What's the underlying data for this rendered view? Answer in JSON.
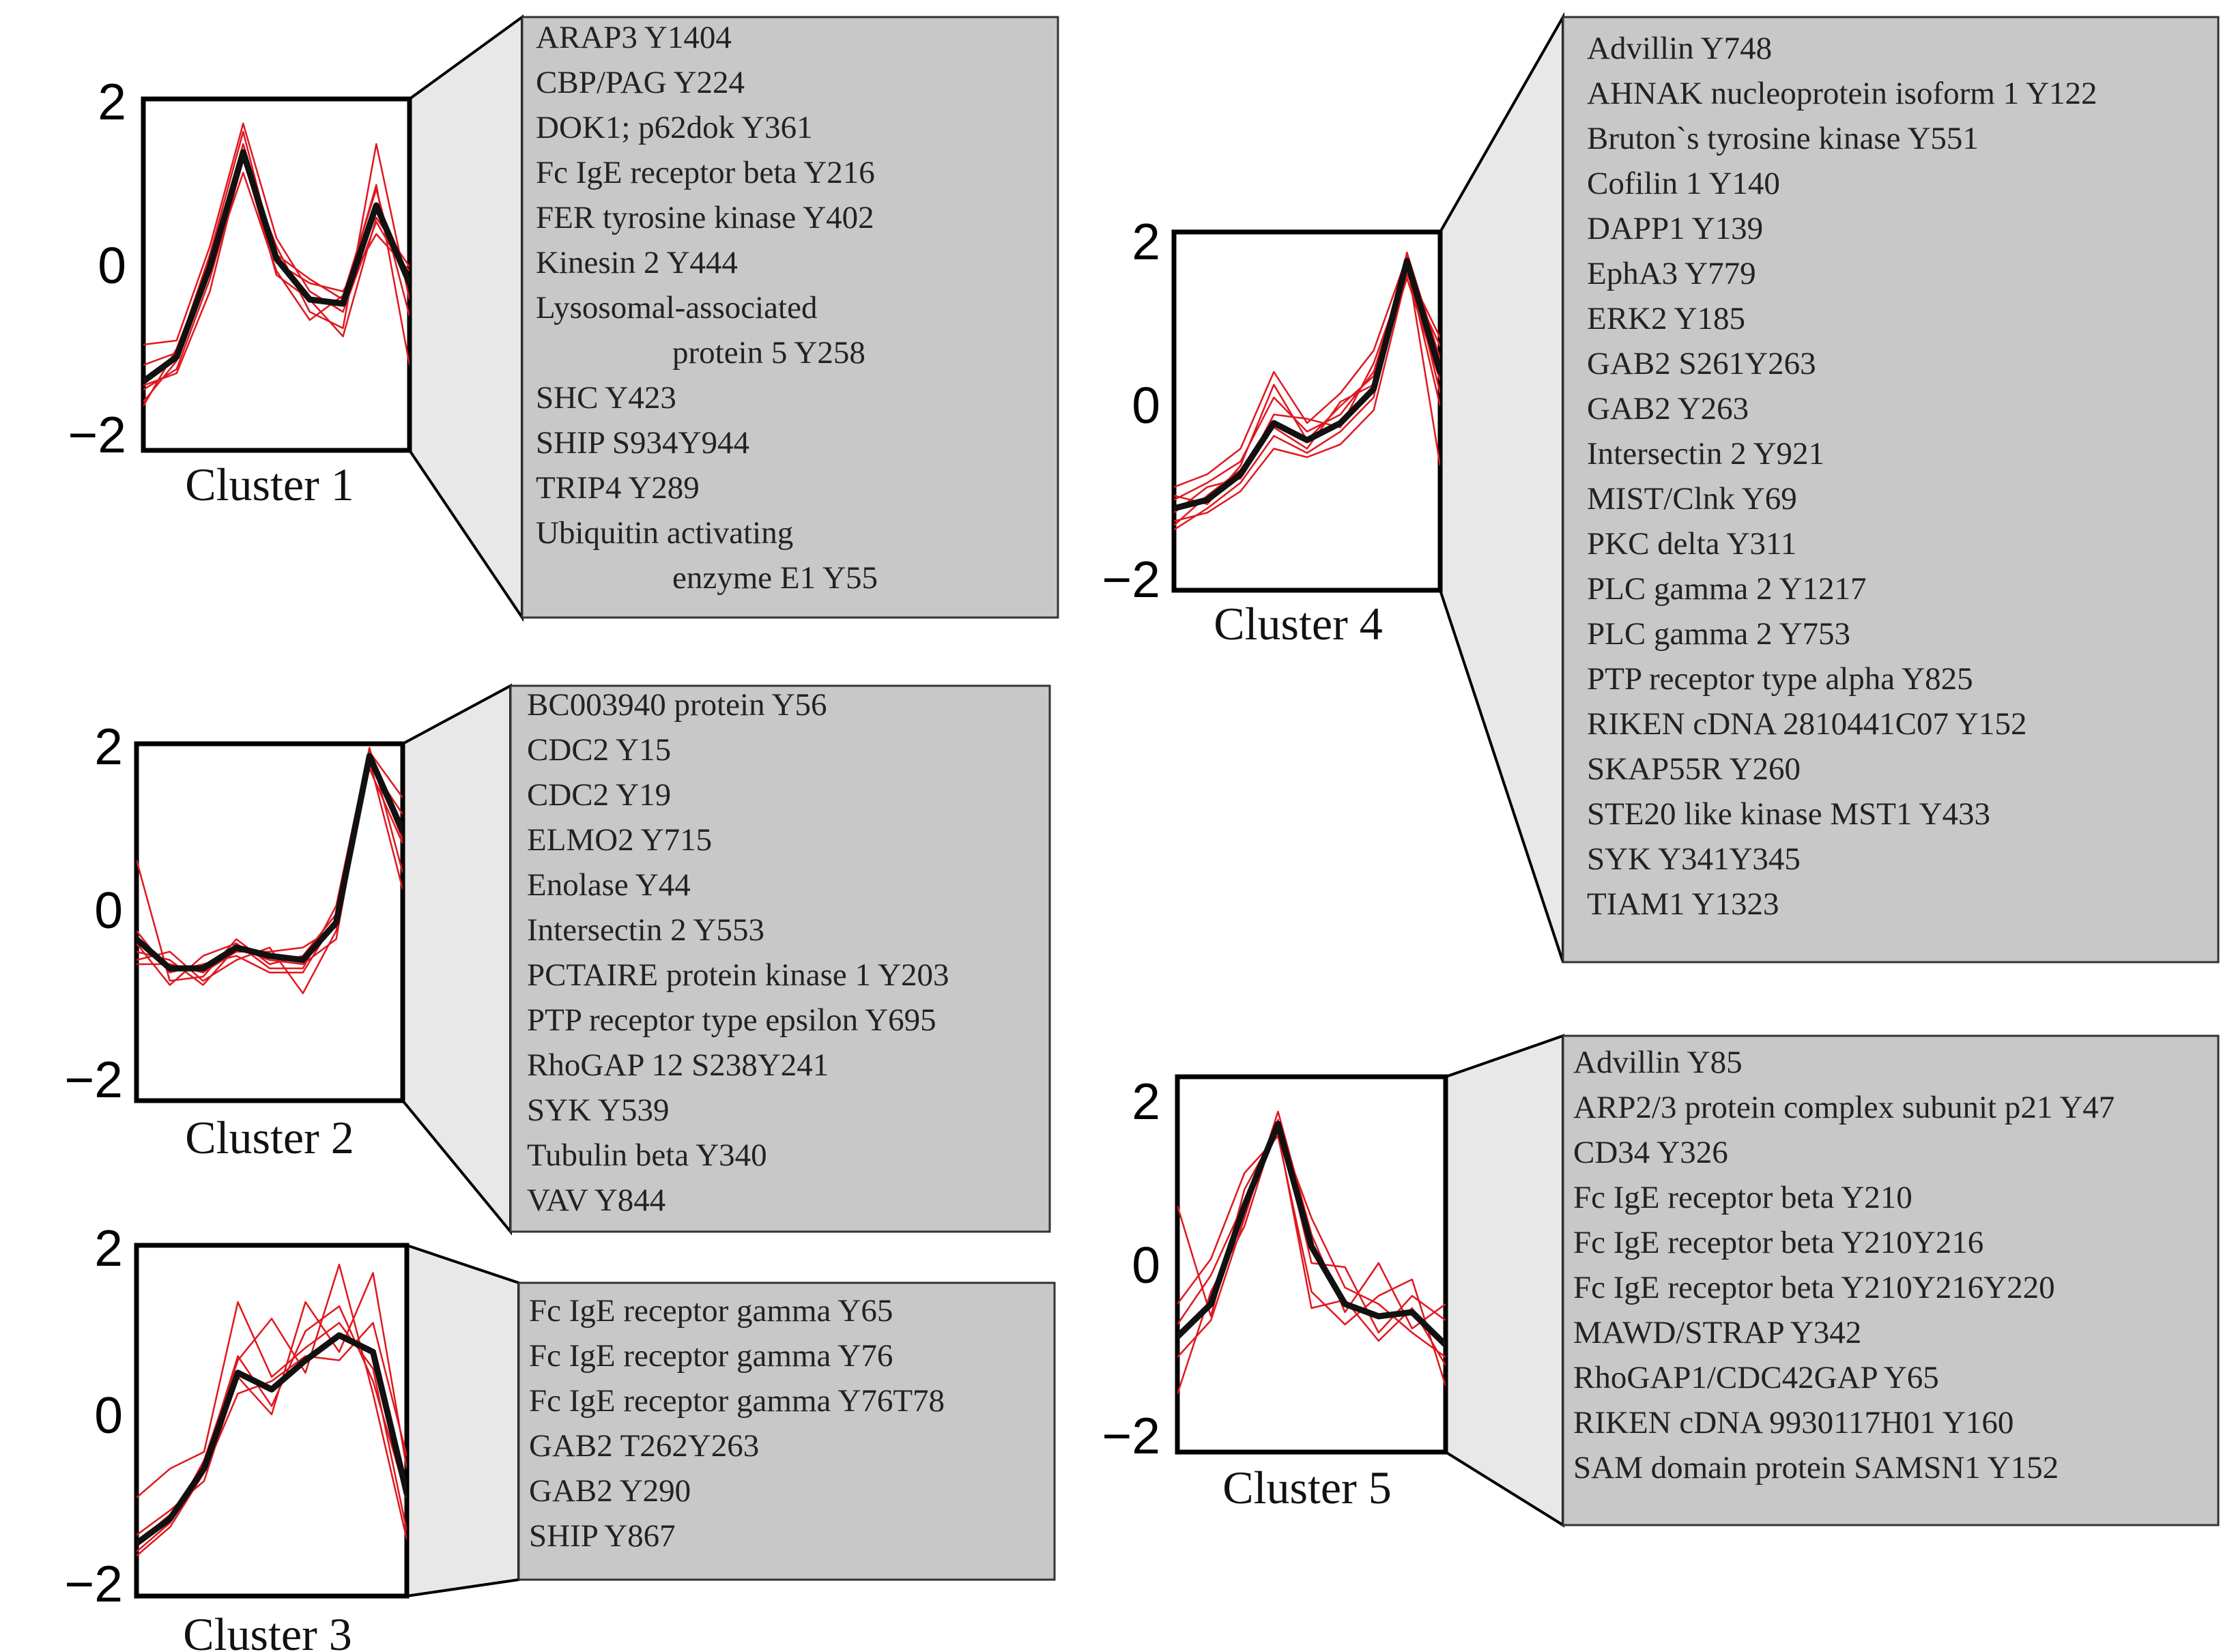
{
  "colors": {
    "member_line": "#e0171f",
    "mean_line": "#111111",
    "callout_box": "#c8c8c8",
    "callout_trapezoid": "#e8e8e8",
    "frame": "#000000"
  },
  "chart_data": [
    {
      "type": "line",
      "title": "Cluster 1",
      "ylim": [
        -2,
        2
      ],
      "yticks": [
        "2",
        "0",
        "−2"
      ],
      "mean": [
        -1.2,
        -0.9,
        0.2,
        1.6,
        0.3,
        -0.2,
        -0.25,
        0.95,
        0.0
      ],
      "members": [
        [
          -1.3,
          -1.05,
          0.05,
          1.5,
          0.45,
          -0.35,
          -0.55,
          1.7,
          -0.2
        ],
        [
          -1.0,
          -0.85,
          0.35,
          1.85,
          0.25,
          0.0,
          -0.1,
          0.6,
          0.15
        ],
        [
          -1.45,
          -0.95,
          0.15,
          1.35,
          0.15,
          -0.45,
          -0.15,
          1.15,
          -0.4
        ],
        [
          -0.75,
          -0.7,
          0.45,
          1.95,
          0.55,
          -0.1,
          -0.35,
          0.75,
          0.05
        ],
        [
          -1.25,
          -1.1,
          -0.1,
          1.55,
          0.1,
          -0.2,
          -0.65,
          0.8,
          0.2
        ],
        [
          -1.5,
          -0.8,
          0.25,
          1.7,
          0.35,
          0.05,
          -0.2,
          1.2,
          -1.0
        ]
      ],
      "items": [
        "ARAP3 Y1404",
        "CBP/PAG Y224",
        "DOK1; p62dok Y361",
        "Fc IgE receptor beta Y216",
        "FER tyrosine kinase Y402",
        "Kinesin 2 Y444",
        "Lysosomal-associated",
        "protein 5 Y258",
        "SHC Y423",
        "SHIP S934Y944",
        "TRIP4 Y289",
        "Ubiquitin activating",
        "enzyme E1 Y55"
      ]
    },
    {
      "type": "line",
      "title": "Cluster 2",
      "ylim": [
        -2,
        2
      ],
      "yticks": [
        "2",
        "0",
        "−2"
      ],
      "mean": [
        -0.2,
        -0.55,
        -0.55,
        -0.3,
        -0.4,
        -0.45,
        0.0,
        2.0,
        1.1
      ],
      "members": [
        [
          0.75,
          -0.7,
          -0.65,
          -0.2,
          -0.5,
          -0.4,
          0.1,
          1.85,
          0.95
        ],
        [
          -0.45,
          -0.35,
          -0.7,
          -0.45,
          -0.3,
          -0.85,
          -0.1,
          2.05,
          1.5
        ],
        [
          -0.25,
          -0.75,
          -0.4,
          -0.25,
          -0.55,
          -0.55,
          0.2,
          2.1,
          0.6
        ],
        [
          -0.5,
          -0.5,
          -0.6,
          -0.35,
          -0.35,
          -0.3,
          -0.05,
          1.9,
          1.3
        ],
        [
          -0.1,
          -0.6,
          -0.5,
          -0.4,
          -0.6,
          -0.6,
          0.05,
          1.95,
          0.4
        ],
        [
          -0.35,
          -0.45,
          -0.75,
          -0.3,
          -0.45,
          -0.5,
          -0.2,
          2.0,
          1.0
        ]
      ],
      "items": [
        "BC003940 protein Y56",
        "CDC2 Y15",
        "CDC2 Y19",
        "ELMO2 Y715",
        "Enolase Y44",
        "Intersectin 2 Y553",
        "PCTAIRE protein kinase 1 Y203",
        "PTP receptor type epsilon Y695",
        "RhoGAP 12 S238Y241",
        "SYK Y539",
        "Tubulin  beta Y340",
        "VAV Y844"
      ]
    },
    {
      "type": "line",
      "title": "Cluster 3",
      "ylim": [
        -2,
        2
      ],
      "yticks": [
        "2",
        "0",
        "−2"
      ],
      "mean": [
        -1.45,
        -1.15,
        -0.55,
        0.6,
        0.4,
        0.75,
        1.05,
        0.85,
        -0.85
      ],
      "members": [
        [
          -1.55,
          -1.2,
          -0.45,
          0.75,
          1.25,
          0.6,
          1.9,
          0.35,
          -1.4
        ],
        [
          -1.35,
          -1.05,
          -0.7,
          0.55,
          0.1,
          1.45,
          0.85,
          1.8,
          -0.55
        ],
        [
          -0.9,
          -0.55,
          -0.35,
          1.45,
          0.55,
          0.9,
          1.2,
          0.65,
          -1.3
        ],
        [
          -1.6,
          -1.25,
          -0.6,
          0.35,
          0.5,
          0.8,
          0.75,
          1.2,
          -0.4
        ],
        [
          -1.45,
          -1.1,
          -0.5,
          0.8,
          0.2,
          1.1,
          1.4,
          0.5,
          -0.9
        ]
      ],
      "items": [
        "Fc IgE receptor gamma Y65",
        "Fc IgE receptor gamma Y76",
        "Fc IgE receptor gamma Y76T78",
        "GAB2 T262Y263",
        "GAB2 Y290",
        "SHIP Y867"
      ]
    },
    {
      "type": "line",
      "title": "Cluster 4",
      "ylim": [
        -2,
        2
      ],
      "yticks": [
        "2",
        "0",
        "−2"
      ],
      "mean": [
        -1.0,
        -0.9,
        -0.6,
        0.0,
        -0.2,
        0.0,
        0.4,
        1.9,
        0.6
      ],
      "members": [
        [
          -0.75,
          -0.6,
          -0.3,
          0.6,
          0.0,
          0.35,
          0.85,
          1.95,
          0.35
        ],
        [
          -1.15,
          -1.05,
          -0.8,
          -0.3,
          -0.4,
          -0.25,
          0.15,
          1.75,
          0.9
        ],
        [
          -0.9,
          -0.7,
          -0.45,
          0.3,
          -0.1,
          0.1,
          0.6,
          1.85,
          0.2
        ],
        [
          -1.25,
          -1.0,
          -0.7,
          -0.15,
          -0.35,
          -0.1,
          0.3,
          2.0,
          0.75
        ],
        [
          -0.85,
          -0.95,
          -0.5,
          0.45,
          -0.2,
          0.2,
          0.55,
          1.9,
          -0.5
        ],
        [
          -1.05,
          -0.75,
          -0.65,
          0.1,
          0.05,
          -0.05,
          0.7,
          1.8,
          1.0
        ],
        [
          -1.2,
          -0.85,
          -0.55,
          -0.05,
          -0.3,
          0.25,
          0.45,
          1.7,
          0.5
        ]
      ],
      "items": [
        "Advillin Y748",
        "AHNAK nucleoprotein isoform 1 Y122",
        "Bruton`s tyrosine kinase Y551",
        "Cofilin 1 Y140",
        "DAPP1  Y139",
        "EphA3   Y779",
        "ERK2 Y185",
        "GAB2 S261Y263",
        "GAB2 Y263",
        "Intersectin 2 Y921",
        "MIST/Clnk  Y69",
        "PKC delta Y311",
        "PLC  gamma 2 Y1217",
        "PLC  gamma 2 Y753",
        "PTP receptor type alpha Y825",
        "RIKEN cDNA 2810441C07 Y152",
        "SKAP55R Y260",
        "STE20 like kinase MST1 Y433",
        "SYK Y341Y345",
        "TIAM1  Y1323"
      ]
    },
    {
      "type": "line",
      "title": "Cluster 5",
      "ylim": [
        -2,
        2
      ],
      "yticks": [
        "2",
        "0",
        "−2"
      ],
      "mean": [
        -0.7,
        -0.3,
        0.9,
        1.9,
        0.4,
        -0.3,
        -0.45,
        -0.4,
        -0.8
      ],
      "members": [
        [
          0.9,
          -0.45,
          1.1,
          1.85,
          0.75,
          -0.1,
          -0.3,
          -0.65,
          -0.95
        ],
        [
          -1.4,
          -0.15,
          0.65,
          1.95,
          0.2,
          0.15,
          -0.65,
          -0.2,
          -0.5
        ],
        [
          -0.3,
          0.25,
          1.3,
          1.75,
          -0.15,
          -0.55,
          -0.2,
          0.0,
          -1.3
        ],
        [
          -0.95,
          -0.5,
          0.75,
          2.05,
          0.55,
          -0.4,
          0.2,
          -0.6,
          -0.3
        ],
        [
          -0.55,
          0.05,
          0.95,
          1.8,
          -0.35,
          -0.25,
          -0.75,
          -0.35,
          -1.05
        ]
      ],
      "items": [
        "Advillin Y85",
        "ARP2/3 protein complex subunit p21 Y47",
        "CD34 Y326",
        "Fc IgE receptor beta Y210",
        "Fc IgE receptor beta Y210Y216",
        "Fc IgE receptor beta Y210Y216Y220",
        "MAWD/STRAP   Y342",
        "RhoGAP1/CDC42GAP Y65",
        "RIKEN cDNA 9930117H01 Y160",
        "SAM domain protein SAMSN1 Y152"
      ]
    }
  ]
}
